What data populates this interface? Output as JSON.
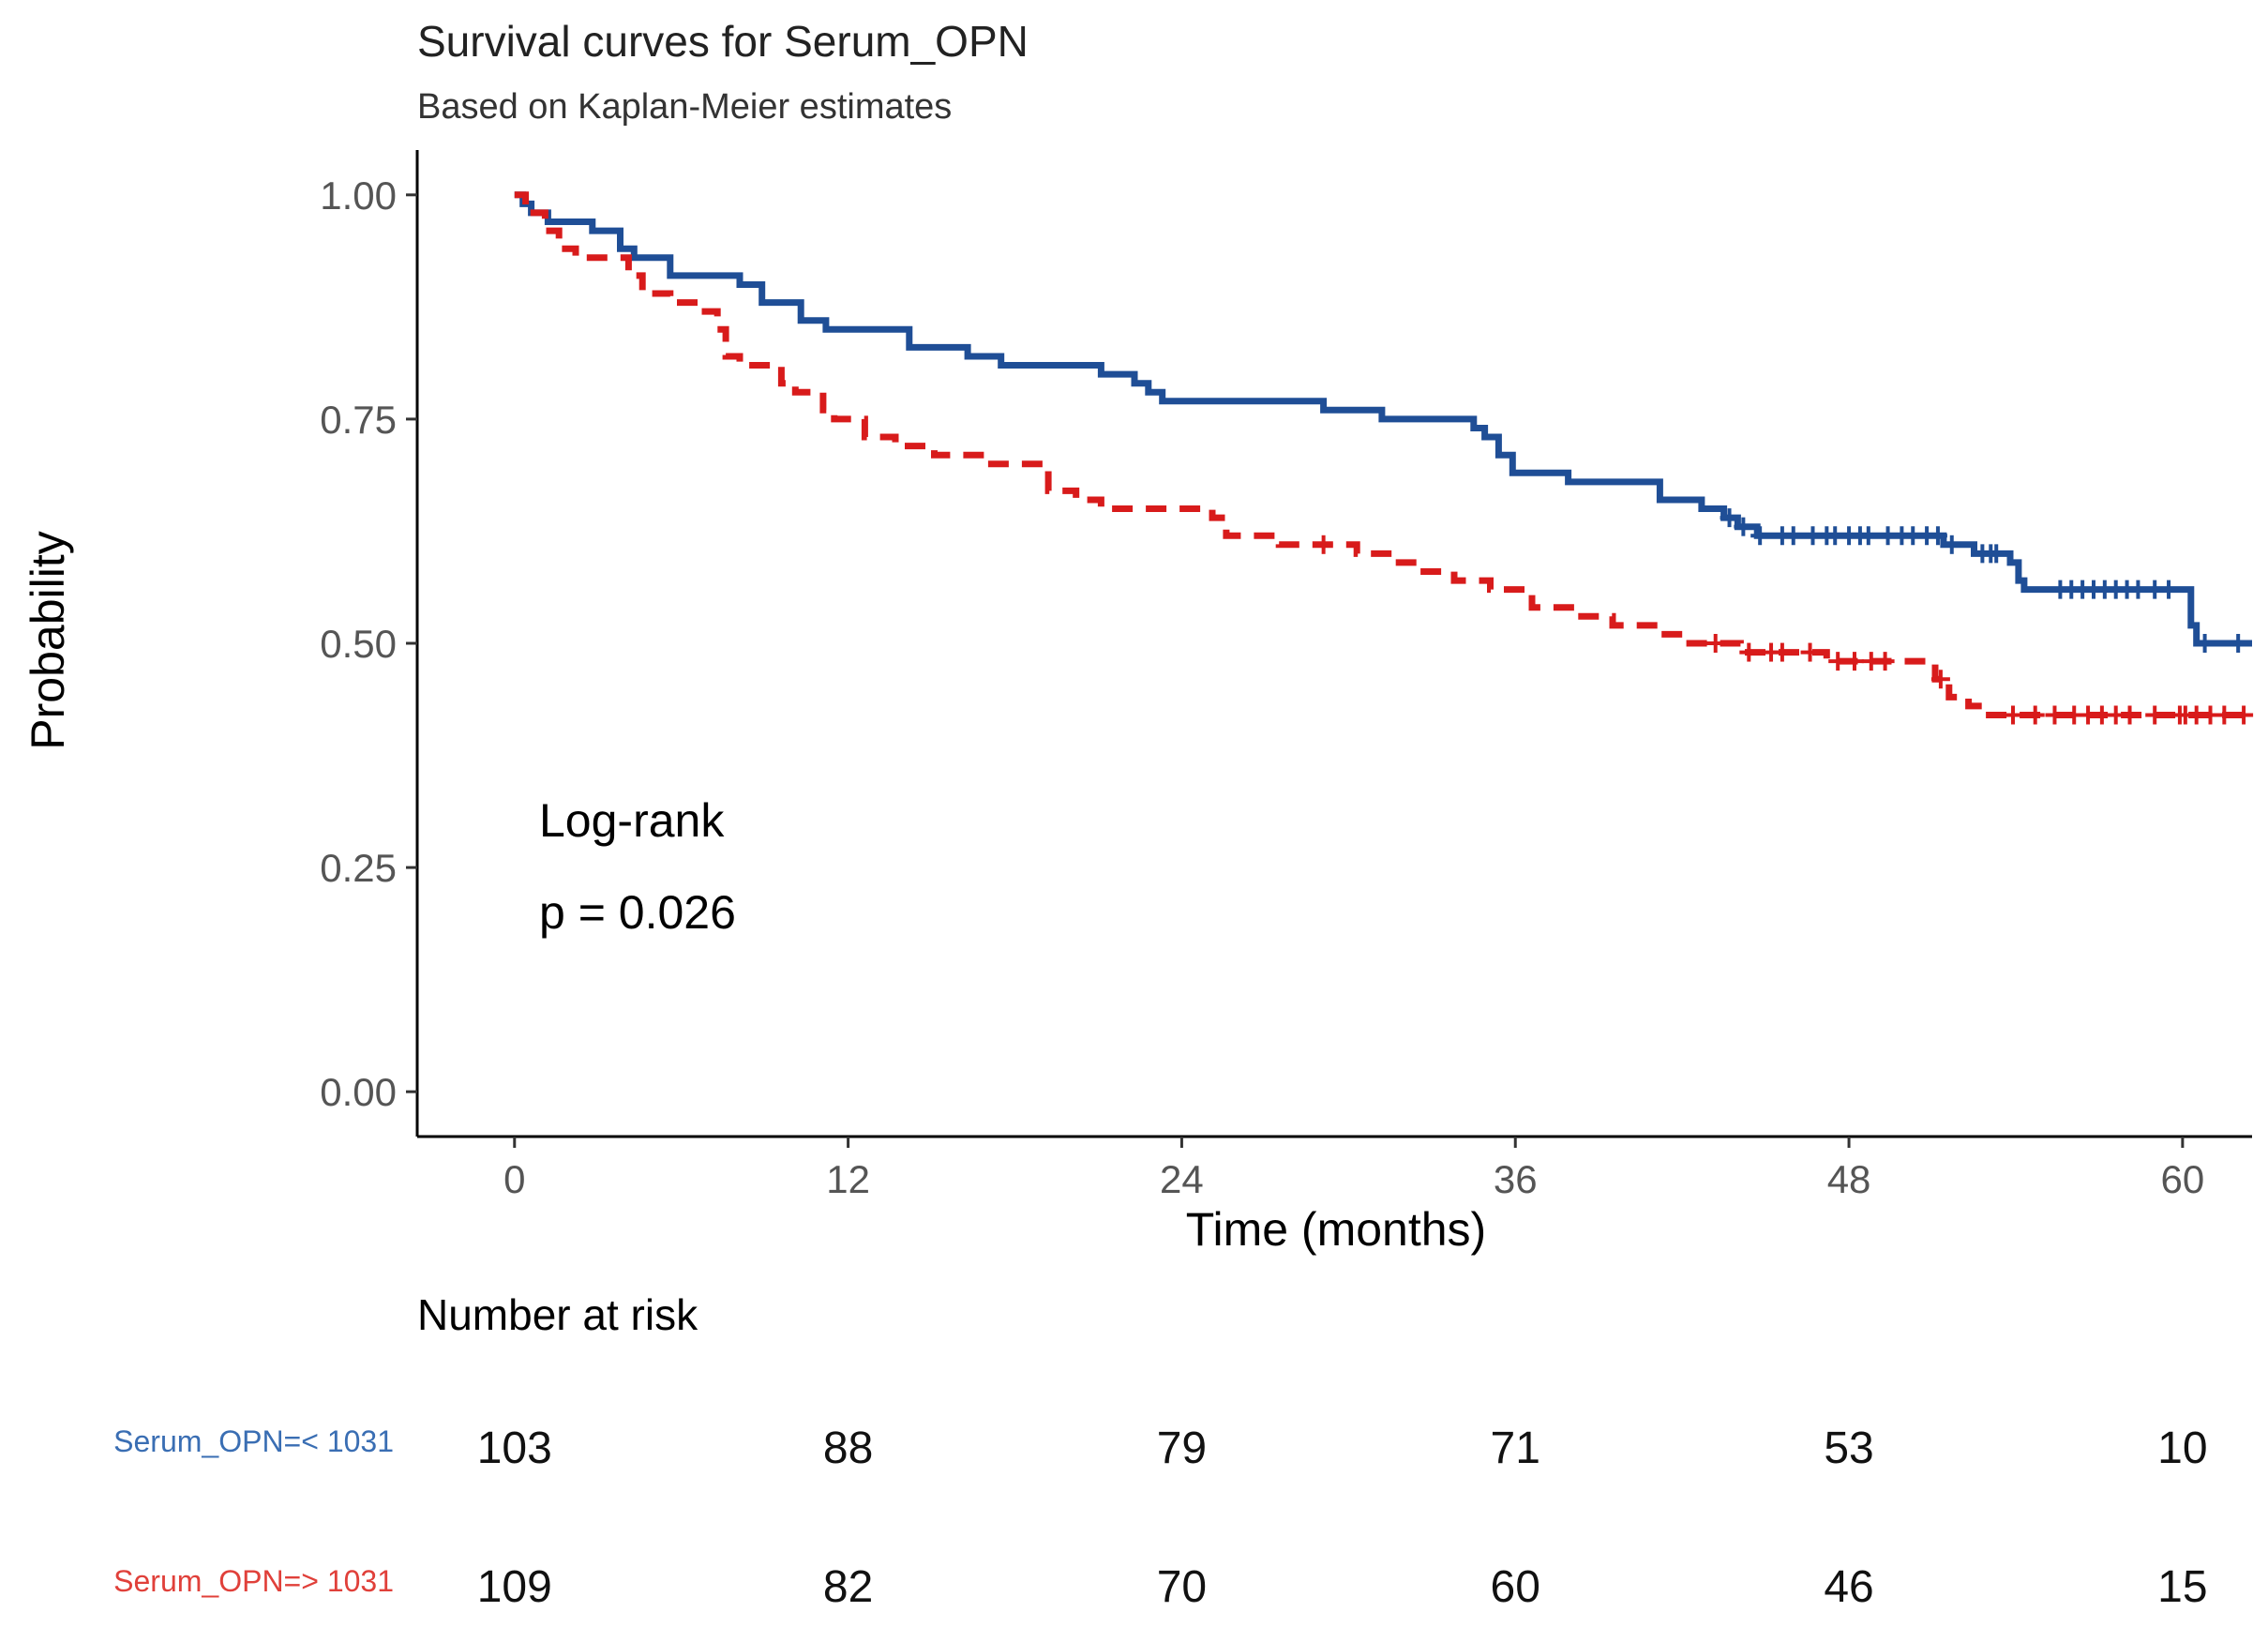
{
  "chart_data": {
    "type": "line",
    "title": "Survival curves for Serum_OPN",
    "subtitle": "Based on Kaplan-Meier estimates",
    "xlabel": "Time (months)",
    "ylabel": "Probability",
    "xlim": [
      -3.5,
      62.5
    ],
    "ylim": [
      -0.05,
      1.05
    ],
    "xticks": [
      0,
      12,
      24,
      36,
      48,
      60
    ],
    "xtick_labels": [
      "0",
      "12",
      "24",
      "36",
      "48",
      "60"
    ],
    "yticks": [
      0,
      0.25,
      0.5,
      0.75,
      1.0
    ],
    "ytick_labels": [
      "0.00",
      "0.25",
      "0.50",
      "0.75",
      "1.00"
    ],
    "grid": false,
    "annotation": {
      "line1": "Log-rank",
      "line2": "p = 0.026"
    },
    "series": [
      {
        "name": "Serum_OPN=< 1031",
        "color": "#1f4e96",
        "dash": "solid",
        "steps": [
          [
            0,
            1.0
          ],
          [
            0.3,
            0.99
          ],
          [
            0.6,
            0.98
          ],
          [
            1.2,
            0.97
          ],
          [
            2.8,
            0.96
          ],
          [
            3.8,
            0.94
          ],
          [
            4.3,
            0.93
          ],
          [
            5.6,
            0.91
          ],
          [
            8.1,
            0.9
          ],
          [
            8.9,
            0.88
          ],
          [
            10.3,
            0.86
          ],
          [
            11.2,
            0.85
          ],
          [
            14.2,
            0.83
          ],
          [
            16.3,
            0.82
          ],
          [
            17.5,
            0.81
          ],
          [
            21.1,
            0.8
          ],
          [
            22.3,
            0.79
          ],
          [
            22.8,
            0.78
          ],
          [
            23.3,
            0.77
          ],
          [
            29.1,
            0.76
          ],
          [
            31.2,
            0.75
          ],
          [
            34.5,
            0.74
          ],
          [
            34.9,
            0.73
          ],
          [
            35.4,
            0.71
          ],
          [
            35.9,
            0.69
          ],
          [
            37.9,
            0.68
          ],
          [
            41.2,
            0.66
          ],
          [
            42.7,
            0.65
          ],
          [
            43.5,
            0.64
          ],
          [
            44.0,
            0.63
          ],
          [
            44.7,
            0.62
          ],
          [
            51.4,
            0.61
          ],
          [
            52.5,
            0.6
          ],
          [
            53.8,
            0.59
          ],
          [
            54.1,
            0.57
          ],
          [
            54.3,
            0.56
          ],
          [
            60.3,
            0.52
          ],
          [
            60.5,
            0.5
          ],
          [
            62.5,
            0.5
          ]
        ],
        "censor_times": [
          43.7,
          44.2,
          44.8,
          45.6,
          46.0,
          46.7,
          47.2,
          47.5,
          48.0,
          48.4,
          48.7,
          49.4,
          49.9,
          50.3,
          50.8,
          51.2,
          51.7,
          52.8,
          53.1,
          53.3,
          55.6,
          56.0,
          56.4,
          56.8,
          57.2,
          57.6,
          58.0,
          58.4,
          59.0,
          59.5,
          60.8,
          62.0
        ]
      },
      {
        "name": "Serum_OPN=> 1031",
        "color": "#d81b1b",
        "dash": "dashed",
        "steps": [
          [
            0,
            1.0
          ],
          [
            0.4,
            0.98
          ],
          [
            1.1,
            0.96
          ],
          [
            1.6,
            0.94
          ],
          [
            2.2,
            0.93
          ],
          [
            4.1,
            0.91
          ],
          [
            4.6,
            0.89
          ],
          [
            5.6,
            0.88
          ],
          [
            6.6,
            0.87
          ],
          [
            7.3,
            0.85
          ],
          [
            7.6,
            0.82
          ],
          [
            8.1,
            0.81
          ],
          [
            9.6,
            0.79
          ],
          [
            10.1,
            0.78
          ],
          [
            11.1,
            0.76
          ],
          [
            11.5,
            0.75
          ],
          [
            12.6,
            0.73
          ],
          [
            13.7,
            0.72
          ],
          [
            15.1,
            0.71
          ],
          [
            16.9,
            0.7
          ],
          [
            19.2,
            0.67
          ],
          [
            20.2,
            0.66
          ],
          [
            21.1,
            0.65
          ],
          [
            25.1,
            0.64
          ],
          [
            25.6,
            0.62
          ],
          [
            27.5,
            0.61
          ],
          [
            30.3,
            0.6
          ],
          [
            31.7,
            0.59
          ],
          [
            32.5,
            0.58
          ],
          [
            33.8,
            0.57
          ],
          [
            35.1,
            0.56
          ],
          [
            36.6,
            0.54
          ],
          [
            38.2,
            0.53
          ],
          [
            39.5,
            0.52
          ],
          [
            41.2,
            0.51
          ],
          [
            42.1,
            0.5
          ],
          [
            44.1,
            0.49
          ],
          [
            47.2,
            0.48
          ],
          [
            51.1,
            0.46
          ],
          [
            51.6,
            0.44
          ],
          [
            52.3,
            0.43
          ],
          [
            52.8,
            0.42
          ],
          [
            62.5,
            0.42
          ]
        ],
        "censor_times": [
          29.1,
          43.2,
          44.4,
          45.2,
          45.6,
          46.6,
          47.6,
          48.2,
          48.8,
          49.3,
          51.3,
          53.9,
          54.7,
          55.4,
          56.1,
          56.6,
          57.1,
          57.6,
          58.1,
          59.0,
          59.9,
          60.1,
          60.5,
          61.0,
          61.5,
          62.2
        ]
      }
    ]
  },
  "risk_table": {
    "title": "Number at risk",
    "times": [
      0,
      12,
      24,
      36,
      48,
      60
    ],
    "rows": [
      {
        "label": "Serum_OPN=< 1031",
        "color": "#3a6eb3",
        "counts": [
          "103",
          "88",
          "79",
          "71",
          "53",
          "10"
        ]
      },
      {
        "label": "Serum_OPN=> 1031",
        "color": "#e0403a",
        "counts": [
          "109",
          "82",
          "70",
          "60",
          "46",
          "15"
        ]
      }
    ]
  }
}
